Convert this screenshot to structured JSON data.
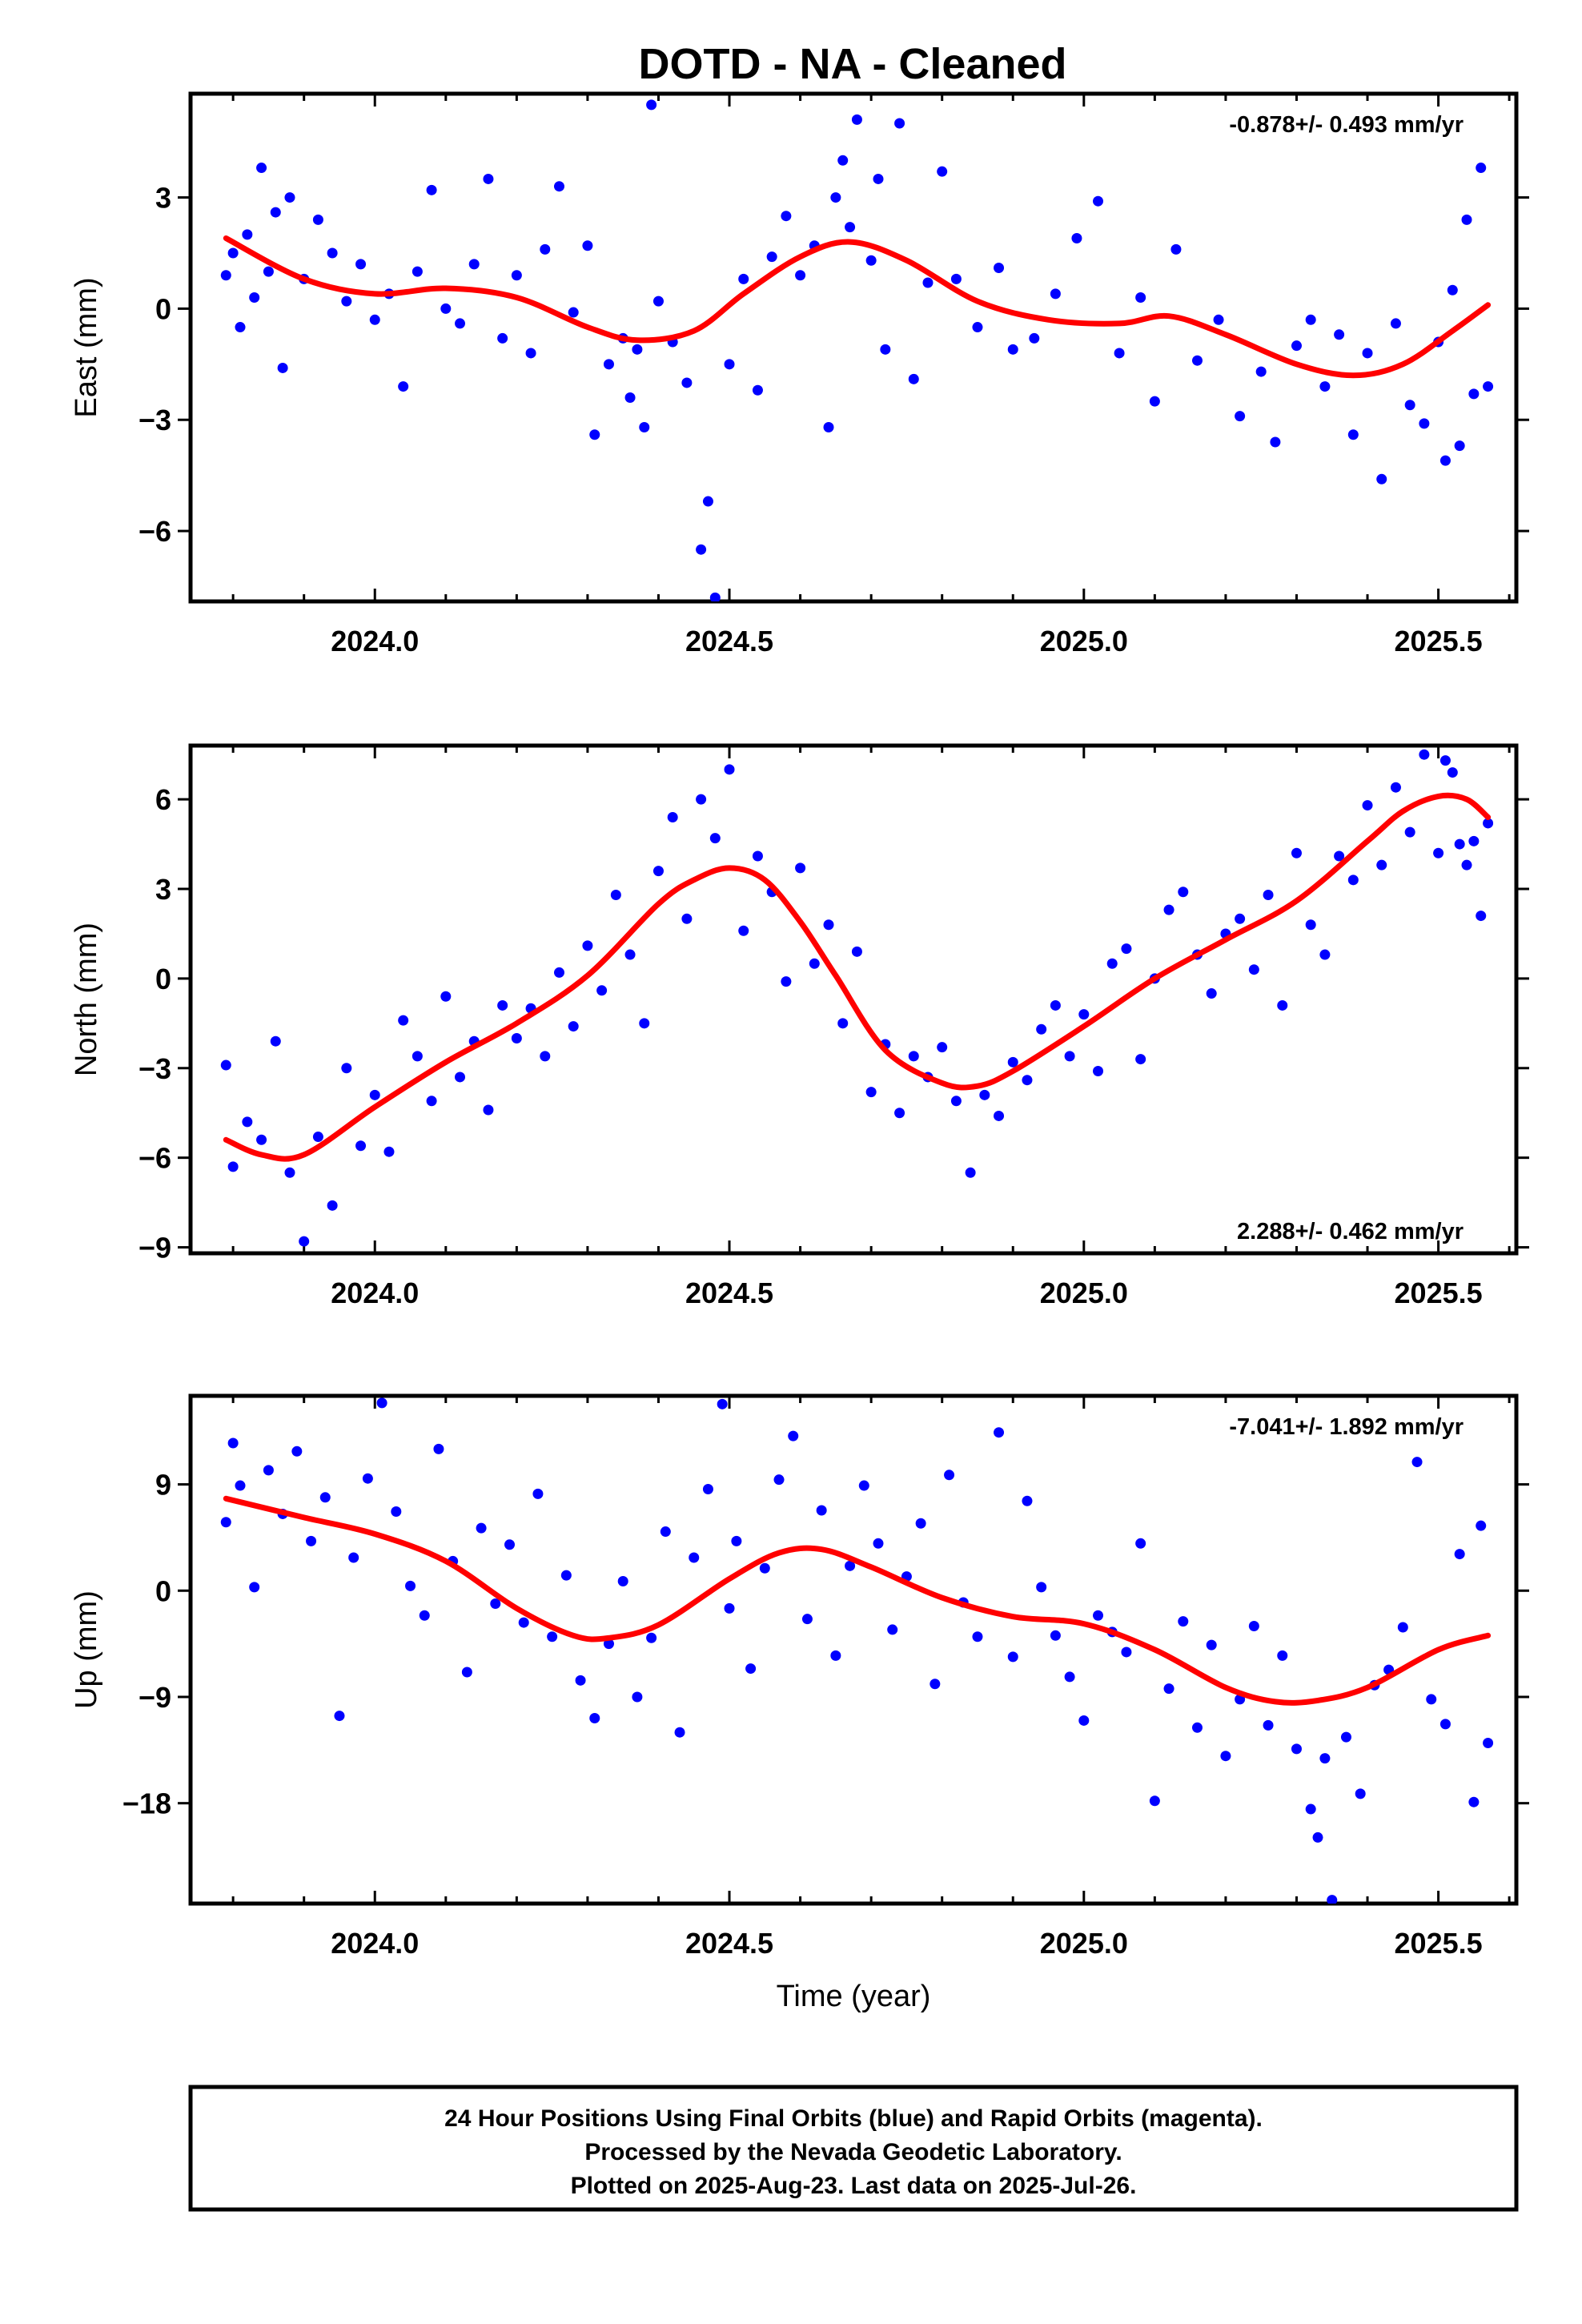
{
  "title": "DOTD  - NA - Cleaned",
  "footer": {
    "lines": [
      "24 Hour Positions Using Final Orbits (blue) and Rapid Orbits (magenta).",
      "Processed by the Nevada Geodetic Laboratory.",
      "Plotted on 2025-Aug-23. Last data on 2025-Jul-26."
    ]
  },
  "colors": {
    "points": "#0000ff",
    "fit": "#ff0000",
    "axes": "#000000"
  },
  "chart_data": [
    {
      "type": "scatter",
      "name": "east",
      "xlabel": "",
      "ylabel": "East (mm)",
      "rate_label": "-0.878+/- 0.493 mm/yr",
      "rate_position": "top-right",
      "xlim": [
        2023.74,
        2025.61
      ],
      "ylim": [
        -7.9,
        5.8
      ],
      "x_ticks": [
        2024.0,
        2024.5,
        2025.0,
        2025.5
      ],
      "x_tick_labels": [
        "2024.0",
        "2024.5",
        "2025.0",
        "2025.5"
      ],
      "y_ticks": [
        3,
        0,
        -3,
        -6
      ],
      "y_tick_labels": [
        "3",
        "0",
        "−3",
        "−6"
      ],
      "fit": {
        "x": [
          2023.79,
          2023.9,
          2024.0,
          2024.1,
          2024.2,
          2024.3,
          2024.37,
          2024.45,
          2024.52,
          2024.6,
          2024.67,
          2024.75,
          2024.85,
          2024.95,
          2025.05,
          2025.12,
          2025.2,
          2025.3,
          2025.38,
          2025.45,
          2025.52,
          2025.57
        ],
        "y": [
          1.9,
          0.8,
          0.4,
          0.55,
          0.3,
          -0.5,
          -0.85,
          -0.6,
          0.4,
          1.4,
          1.8,
          1.3,
          0.2,
          -0.3,
          -0.4,
          -0.2,
          -0.7,
          -1.5,
          -1.8,
          -1.5,
          -0.6,
          0.1
        ]
      },
      "points": {
        "x": [
          2023.79,
          2023.8,
          2023.81,
          2023.82,
          2023.83,
          2023.84,
          2023.85,
          2023.86,
          2023.87,
          2023.88,
          2023.9,
          2023.92,
          2023.94,
          2023.96,
          2023.98,
          2024.0,
          2024.02,
          2024.04,
          2024.06,
          2024.08,
          2024.1,
          2024.12,
          2024.14,
          2024.16,
          2024.18,
          2024.2,
          2024.22,
          2024.24,
          2024.26,
          2024.28,
          2024.3,
          2024.31,
          2024.33,
          2024.35,
          2024.36,
          2024.37,
          2024.38,
          2024.39,
          2024.4,
          2024.42,
          2024.44,
          2024.46,
          2024.47,
          2024.48,
          2024.5,
          2024.52,
          2024.54,
          2024.56,
          2024.58,
          2024.6,
          2024.62,
          2024.64,
          2024.65,
          2024.66,
          2024.67,
          2024.68,
          2024.7,
          2024.71,
          2024.72,
          2024.74,
          2024.76,
          2024.78,
          2024.8,
          2024.82,
          2024.85,
          2024.88,
          2024.9,
          2024.93,
          2024.96,
          2024.99,
          2025.02,
          2025.05,
          2025.08,
          2025.1,
          2025.13,
          2025.16,
          2025.19,
          2025.22,
          2025.25,
          2025.27,
          2025.3,
          2025.32,
          2025.34,
          2025.36,
          2025.38,
          2025.4,
          2025.42,
          2025.44,
          2025.46,
          2025.48,
          2025.5,
          2025.51,
          2025.52,
          2025.53,
          2025.54,
          2025.55,
          2025.56,
          2025.57
        ],
        "y": [
          0.9,
          1.5,
          -0.5,
          2.0,
          0.3,
          3.8,
          1.0,
          2.6,
          -1.6,
          3.0,
          0.8,
          2.4,
          1.5,
          0.2,
          1.2,
          -0.3,
          0.4,
          -2.1,
          1.0,
          3.2,
          0.0,
          -0.4,
          1.2,
          3.5,
          -0.8,
          0.9,
          -1.2,
          1.6,
          3.3,
          -0.1,
          1.7,
          -3.4,
          -1.5,
          -0.8,
          -2.4,
          -1.1,
          -3.2,
          5.5,
          0.2,
          -0.9,
          -2.0,
          -6.5,
          -5.2,
          -7.8,
          -1.5,
          0.8,
          -2.2,
          1.4,
          2.5,
          0.9,
          1.7,
          -3.2,
          3.0,
          4.0,
          2.2,
          5.1,
          1.3,
          3.5,
          -1.1,
          5.0,
          -1.9,
          0.7,
          3.7,
          0.8,
          -0.5,
          1.1,
          -1.1,
          -0.8,
          0.4,
          1.9,
          2.9,
          -1.2,
          0.3,
          -2.5,
          1.6,
          -1.4,
          -0.3,
          -2.9,
          -1.7,
          -3.6,
          -1.0,
          -0.3,
          -2.1,
          -0.7,
          -3.4,
          -1.2,
          -4.6,
          -0.4,
          -2.6,
          -3.1,
          -0.9,
          -4.1,
          0.5,
          -3.7,
          2.4,
          -2.3,
          3.8,
          -2.1
        ]
      }
    },
    {
      "type": "scatter",
      "name": "north",
      "xlabel": "",
      "ylabel": "North (mm)",
      "rate_label": "2.288+/- 0.462 mm/yr",
      "rate_position": "bottom-right",
      "xlim": [
        2023.74,
        2025.61
      ],
      "ylim": [
        -9.2,
        7.8
      ],
      "x_ticks": [
        2024.0,
        2024.5,
        2025.0,
        2025.5
      ],
      "x_tick_labels": [
        "2024.0",
        "2024.5",
        "2025.0",
        "2025.5"
      ],
      "y_ticks": [
        6,
        3,
        0,
        -3,
        -6,
        -9
      ],
      "y_tick_labels": [
        "6",
        "3",
        "0",
        "−3",
        "−6",
        "−9"
      ],
      "fit": {
        "x": [
          2023.79,
          2023.84,
          2023.9,
          2024.0,
          2024.1,
          2024.2,
          2024.3,
          2024.4,
          2024.45,
          2024.5,
          2024.55,
          2024.6,
          2024.65,
          2024.72,
          2024.8,
          2024.85,
          2024.9,
          2025.0,
          2025.1,
          2025.2,
          2025.3,
          2025.4,
          2025.45,
          2025.5,
          2025.54,
          2025.57
        ],
        "y": [
          -5.4,
          -5.9,
          -5.9,
          -4.3,
          -2.8,
          -1.5,
          0.1,
          2.5,
          3.3,
          3.7,
          3.3,
          1.9,
          0.1,
          -2.4,
          -3.5,
          -3.6,
          -3.1,
          -1.6,
          0.0,
          1.3,
          2.6,
          4.6,
          5.6,
          6.1,
          6.0,
          5.4
        ]
      },
      "points": {
        "x": [
          2023.79,
          2023.8,
          2023.82,
          2023.84,
          2023.86,
          2023.88,
          2023.9,
          2023.92,
          2023.94,
          2023.96,
          2023.98,
          2024.0,
          2024.02,
          2024.04,
          2024.06,
          2024.08,
          2024.1,
          2024.12,
          2024.14,
          2024.16,
          2024.18,
          2024.2,
          2024.22,
          2024.24,
          2024.26,
          2024.28,
          2024.3,
          2024.32,
          2024.34,
          2024.36,
          2024.38,
          2024.4,
          2024.42,
          2024.44,
          2024.46,
          2024.48,
          2024.5,
          2024.52,
          2024.54,
          2024.56,
          2024.58,
          2024.6,
          2024.62,
          2024.64,
          2024.66,
          2024.68,
          2024.7,
          2024.72,
          2024.74,
          2024.76,
          2024.78,
          2024.8,
          2024.82,
          2024.84,
          2024.86,
          2024.88,
          2024.9,
          2024.92,
          2024.94,
          2024.96,
          2024.98,
          2025.0,
          2025.02,
          2025.04,
          2025.06,
          2025.08,
          2025.1,
          2025.12,
          2025.14,
          2025.16,
          2025.18,
          2025.2,
          2025.22,
          2025.24,
          2025.26,
          2025.28,
          2025.3,
          2025.32,
          2025.34,
          2025.36,
          2025.38,
          2025.4,
          2025.42,
          2025.44,
          2025.46,
          2025.48,
          2025.5,
          2025.51,
          2025.52,
          2025.53,
          2025.54,
          2025.55,
          2025.56,
          2025.57
        ],
        "y": [
          -2.9,
          -6.3,
          -4.8,
          -5.4,
          -2.1,
          -6.5,
          -8.8,
          -5.3,
          -7.6,
          -3.0,
          -5.6,
          -3.9,
          -5.8,
          -1.4,
          -2.6,
          -4.1,
          -0.6,
          -3.3,
          -2.1,
          -4.4,
          -0.9,
          -2.0,
          -1.0,
          -2.6,
          0.2,
          -1.6,
          1.1,
          -0.4,
          2.8,
          0.8,
          -1.5,
          3.6,
          5.4,
          2.0,
          6.0,
          4.7,
          7.0,
          1.6,
          4.1,
          2.9,
          -0.1,
          3.7,
          0.5,
          1.8,
          -1.5,
          0.9,
          -3.8,
          -2.2,
          -4.5,
          -2.6,
          -3.3,
          -2.3,
          -4.1,
          -6.5,
          -3.9,
          -4.6,
          -2.8,
          -3.4,
          -1.7,
          -0.9,
          -2.6,
          -1.2,
          -3.1,
          0.5,
          1.0,
          -2.7,
          0.0,
          2.3,
          2.9,
          0.8,
          -0.5,
          1.5,
          2.0,
          0.3,
          2.8,
          -0.9,
          4.2,
          1.8,
          0.8,
          4.1,
          3.3,
          5.8,
          3.8,
          6.4,
          4.9,
          7.5,
          4.2,
          7.3,
          6.9,
          4.5,
          3.8,
          4.6,
          2.1,
          5.2
        ]
      }
    },
    {
      "type": "scatter",
      "name": "up",
      "xlabel": "Time (year)",
      "ylabel": "Up (mm)",
      "rate_label": "-7.041+/- 1.892 mm/yr",
      "rate_position": "top-right",
      "xlim": [
        2023.74,
        2025.61
      ],
      "ylim": [
        -26.5,
        16.5
      ],
      "x_ticks": [
        2024.0,
        2024.5,
        2025.0,
        2025.5
      ],
      "x_tick_labels": [
        "2024.0",
        "2024.5",
        "2025.0",
        "2025.5"
      ],
      "y_ticks": [
        9,
        0,
        -9,
        -18
      ],
      "y_tick_labels": [
        "9",
        "0",
        "−9",
        "−18"
      ],
      "fit": {
        "x": [
          2023.79,
          2023.9,
          2024.0,
          2024.1,
          2024.2,
          2024.28,
          2024.33,
          2024.4,
          2024.5,
          2024.57,
          2024.63,
          2024.7,
          2024.8,
          2024.9,
          2025.0,
          2025.1,
          2025.2,
          2025.27,
          2025.33,
          2025.4,
          2025.5,
          2025.57
        ],
        "y": [
          7.8,
          6.2,
          4.8,
          2.5,
          -1.5,
          -3.8,
          -4.0,
          -2.9,
          1.0,
          3.2,
          3.5,
          2.0,
          -0.6,
          -2.2,
          -2.8,
          -5.0,
          -8.2,
          -9.4,
          -9.3,
          -8.2,
          -5.0,
          -3.8
        ]
      },
      "points": {
        "x": [
          2023.79,
          2023.8,
          2023.81,
          2023.83,
          2023.85,
          2023.87,
          2023.89,
          2023.91,
          2023.93,
          2023.95,
          2023.97,
          2023.99,
          2024.01,
          2024.03,
          2024.05,
          2024.07,
          2024.09,
          2024.11,
          2024.13,
          2024.15,
          2024.17,
          2024.19,
          2024.21,
          2024.23,
          2024.25,
          2024.27,
          2024.29,
          2024.31,
          2024.33,
          2024.35,
          2024.37,
          2024.39,
          2024.41,
          2024.43,
          2024.45,
          2024.47,
          2024.49,
          2024.5,
          2024.51,
          2024.53,
          2024.55,
          2024.57,
          2024.59,
          2024.61,
          2024.63,
          2024.65,
          2024.67,
          2024.69,
          2024.71,
          2024.73,
          2024.75,
          2024.77,
          2024.79,
          2024.81,
          2024.83,
          2024.85,
          2024.88,
          2024.9,
          2024.92,
          2024.94,
          2024.96,
          2024.98,
          2025.0,
          2025.02,
          2025.04,
          2025.06,
          2025.08,
          2025.1,
          2025.12,
          2025.14,
          2025.16,
          2025.18,
          2025.2,
          2025.22,
          2025.24,
          2025.26,
          2025.28,
          2025.3,
          2025.32,
          2025.33,
          2025.34,
          2025.35,
          2025.37,
          2025.39,
          2025.41,
          2025.43,
          2025.45,
          2025.47,
          2025.49,
          2025.51,
          2025.53,
          2025.55,
          2025.56,
          2025.57
        ],
        "y": [
          5.8,
          12.5,
          8.9,
          0.3,
          10.2,
          6.5,
          11.8,
          4.2,
          7.9,
          -10.6,
          2.8,
          9.5,
          15.9,
          6.7,
          0.4,
          -2.1,
          12.0,
          2.5,
          -6.9,
          5.3,
          -1.1,
          3.9,
          -2.7,
          8.2,
          -3.9,
          1.3,
          -7.6,
          -10.8,
          -4.5,
          0.8,
          -9.0,
          -4.0,
          5.0,
          -12.0,
          2.8,
          8.6,
          15.8,
          -1.5,
          4.2,
          -6.6,
          1.9,
          9.4,
          13.1,
          -2.4,
          6.8,
          -5.5,
          2.1,
          8.9,
          4.0,
          -3.3,
          1.2,
          5.7,
          -7.9,
          9.8,
          -1.0,
          -3.9,
          13.4,
          -5.6,
          7.6,
          0.3,
          -3.8,
          -7.3,
          -11.0,
          -2.1,
          -3.5,
          -5.2,
          4.0,
          -17.8,
          -8.3,
          -2.6,
          -11.6,
          -4.6,
          -14.0,
          -9.2,
          -3.0,
          -11.4,
          -5.5,
          -13.4,
          -18.5,
          -20.9,
          -14.2,
          -26.2,
          -12.4,
          -17.2,
          -8.0,
          -6.7,
          -3.1,
          10.9,
          -9.2,
          -11.3,
          3.1,
          -17.9,
          5.5,
          -12.9
        ]
      }
    }
  ]
}
